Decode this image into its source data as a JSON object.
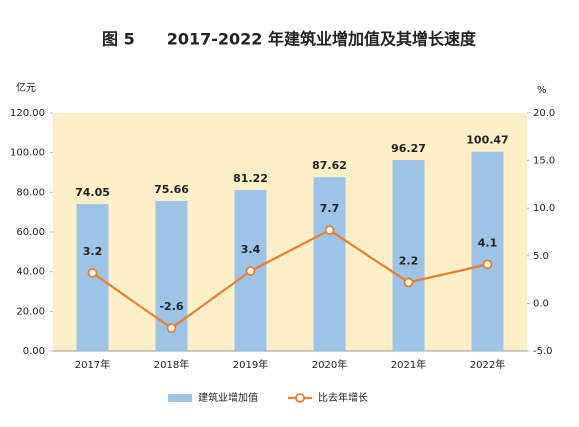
{
  "chart_data": {
    "type": "bar",
    "title": "图 5　　2017-2022 年建筑业增加值及其增长速度",
    "y_unit": "亿元",
    "y2_unit": "%",
    "categories": [
      "2017年",
      "2018年",
      "2019年",
      "2020年",
      "2021年",
      "2022年"
    ],
    "series": [
      {
        "name": "建筑业增加值",
        "type": "bar",
        "color": "#9dc3e6",
        "values": [
          74.05,
          75.66,
          81.22,
          87.62,
          96.27,
          100.47
        ]
      },
      {
        "name": "比去年增长",
        "type": "line",
        "axis": "y2",
        "color": "#ed7d31",
        "values": [
          3.2,
          -2.6,
          3.4,
          7.7,
          2.2,
          4.1
        ]
      }
    ],
    "ylim": [
      0,
      120
    ],
    "yticks": [
      {
        "value": 0,
        "label": "0.00"
      },
      {
        "value": 20,
        "label": "20.00"
      },
      {
        "value": 40,
        "label": "40.00"
      },
      {
        "value": 60,
        "label": "60.00"
      },
      {
        "value": 80,
        "label": "80.00"
      },
      {
        "value": 100,
        "label": "100.00"
      },
      {
        "value": 120,
        "label": "120.00"
      }
    ],
    "y2lim": [
      -5,
      20
    ],
    "y2ticks": [
      {
        "value": -5,
        "label": "-5.0"
      },
      {
        "value": 0,
        "label": "0.0"
      },
      {
        "value": 5,
        "label": "5.0"
      },
      {
        "value": 10,
        "label": "10.0"
      },
      {
        "value": 15,
        "label": "15.0"
      },
      {
        "value": 20,
        "label": "20.0"
      }
    ],
    "plot_background": "#fdf0c8",
    "legend": "bottom"
  }
}
